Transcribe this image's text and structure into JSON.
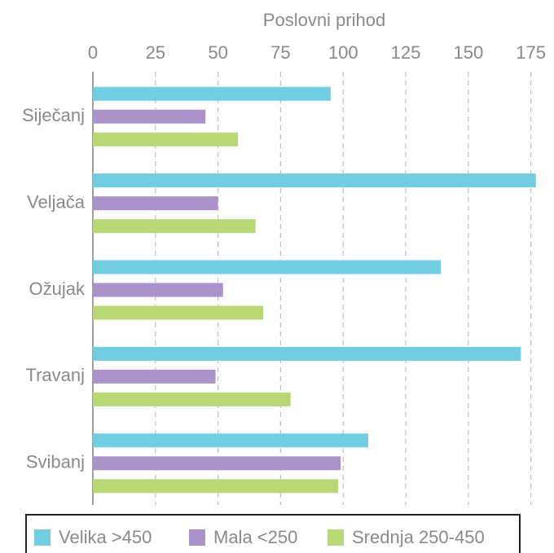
{
  "chart_data": {
    "type": "barh",
    "title": "Poslovni prihod",
    "categories": [
      "Siječanj",
      "Veljača",
      "Ožujak",
      "Travanj",
      "Svibanj"
    ],
    "series": [
      {
        "name": "Velika >450",
        "color": "#72cde0",
        "values": [
          95,
          177,
          139,
          171,
          110
        ]
      },
      {
        "name": "Mala <250",
        "color": "#a993c9",
        "values": [
          45,
          50,
          52,
          49,
          99
        ]
      },
      {
        "name": "Srednja 250-450",
        "color": "#b8d876",
        "values": [
          58,
          65,
          68,
          79,
          98
        ]
      }
    ],
    "xlim": [
      0,
      180
    ],
    "xticks": [
      0,
      25,
      50,
      75,
      100,
      125,
      150,
      175
    ],
    "grid": true,
    "legend": "bottom"
  }
}
